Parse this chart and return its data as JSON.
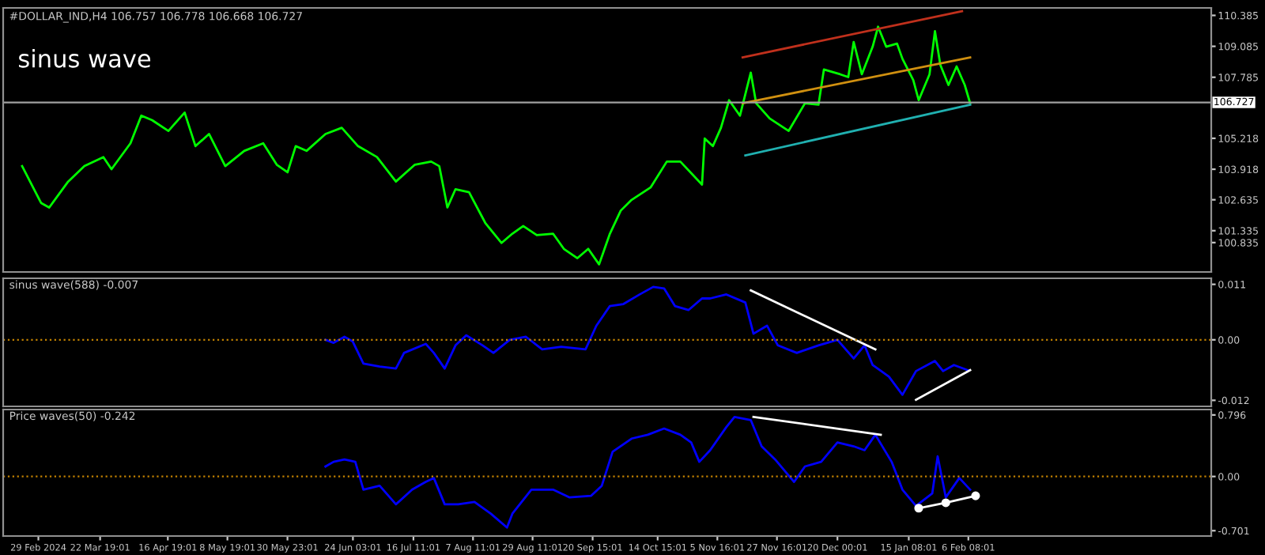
{
  "chart_data": [
    {
      "type": "line",
      "title": "#DOLLAR_IND,H4 106.757 106.778 106.668 106.727",
      "annotations": [
        "sinus wave"
      ],
      "xlim": [
        "2024-02-16",
        "2025-05-07"
      ],
      "ylim": [
        99.6,
        110.7
      ],
      "yticks": [
        110.385,
        109.085,
        107.785,
        105.218,
        103.918,
        102.635,
        101.335,
        100.835
      ],
      "tick_labels": "y",
      "grid": false,
      "legend": false,
      "ref_lines": [
        {
          "axis": "y",
          "value": 106.727,
          "label": "106.727",
          "color": "#a0a0a0",
          "line_style": "solid"
        }
      ],
      "series": [
        {
          "color": "#00ff00",
          "x": [
            "2024-02-23",
            "2024-03-01",
            "2024-03-04",
            "2024-03-11",
            "2024-03-17",
            "2024-03-24",
            "2024-03-27",
            "2024-04-03",
            "2024-04-07",
            "2024-04-11",
            "2024-04-17",
            "2024-04-23",
            "2024-04-27",
            "2024-05-02",
            "2024-05-08",
            "2024-05-15",
            "2024-05-22",
            "2024-05-27",
            "2024-05-31",
            "2024-06-03",
            "2024-06-07",
            "2024-06-14",
            "2024-06-20",
            "2024-06-26",
            "2024-07-03",
            "2024-07-10",
            "2024-07-17",
            "2024-07-23",
            "2024-07-26",
            "2024-07-29",
            "2024-08-01",
            "2024-08-06",
            "2024-08-12",
            "2024-08-18",
            "2024-08-22",
            "2024-08-26",
            "2024-08-31",
            "2024-09-06",
            "2024-09-10",
            "2024-09-15",
            "2024-09-19",
            "2024-09-23",
            "2024-09-27",
            "2024-10-01",
            "2024-10-05",
            "2024-10-12",
            "2024-10-18",
            "2024-10-23",
            "2024-10-31",
            "2024-11-01",
            "2024-11-04",
            "2024-11-07",
            "2024-11-10",
            "2024-11-14",
            "2024-11-18",
            "2024-11-20",
            "2024-11-25",
            "2024-12-02",
            "2024-12-08",
            "2024-12-13",
            "2024-12-15",
            "2024-12-21",
            "2024-12-24",
            "2024-12-26",
            "2024-12-29",
            "2025-01-02",
            "2025-01-04",
            "2025-01-07",
            "2025-01-11",
            "2025-01-13",
            "2025-01-17",
            "2025-01-19",
            "2025-01-23",
            "2025-01-25",
            "2025-01-27",
            "2025-01-30",
            "2025-02-02",
            "2025-02-05",
            "2025-02-07"
          ],
          "values": [
            104.05,
            102.5,
            102.31,
            103.4,
            104.05,
            104.43,
            103.92,
            105.01,
            106.17,
            105.98,
            105.53,
            106.3,
            104.89,
            105.4,
            104.05,
            104.69,
            105.01,
            104.11,
            103.79,
            104.89,
            104.69,
            105.4,
            105.66,
            104.89,
            104.43,
            103.4,
            104.11,
            104.24,
            104.05,
            102.31,
            103.08,
            102.95,
            101.66,
            100.82,
            101.21,
            101.53,
            101.15,
            101.21,
            100.57,
            100.18,
            100.57,
            99.92,
            101.21,
            102.18,
            102.63,
            103.15,
            104.24,
            104.24,
            103.27,
            105.21,
            104.89,
            105.66,
            106.82,
            106.17,
            107.98,
            106.69,
            106.05,
            105.53,
            106.69,
            106.63,
            108.11,
            107.91,
            107.79,
            109.27,
            107.91,
            109.07,
            109.91,
            109.07,
            109.2,
            108.56,
            107.66,
            106.82,
            107.91,
            109.72,
            108.3,
            107.46,
            108.24,
            107.46,
            106.69
          ]
        },
        {
          "color": "#c0301c",
          "x": [
            "2024-11-15",
            "2025-02-04"
          ],
          "values": [
            108.62,
            110.56
          ]
        },
        {
          "color": "#d09010",
          "x": [
            "2024-11-15",
            "2025-02-07"
          ],
          "values": [
            106.69,
            108.62
          ]
        },
        {
          "color": "#20b0b0",
          "x": [
            "2024-11-16",
            "2025-02-07"
          ],
          "values": [
            104.5,
            106.63
          ]
        }
      ]
    },
    {
      "type": "line",
      "title": "sinus wave(588) -0.007",
      "xlim": [
        "2024-02-16",
        "2025-05-07"
      ],
      "ylim": [
        -0.0132,
        0.0122
      ],
      "yticks": [
        0.011,
        {
          "value": 0,
          "label": "0.00"
        },
        -0.012
      ],
      "tick_labels": "y",
      "grid": false,
      "legend": false,
      "ref_lines": [
        {
          "axis": "y",
          "value": 0,
          "label": null,
          "color": "#c08000",
          "line_style": "dotted"
        }
      ],
      "series": [
        {
          "color": "#0000ff",
          "x": [
            "2024-06-14",
            "2024-06-17",
            "2024-06-21",
            "2024-06-24",
            "2024-06-28",
            "2024-07-04",
            "2024-07-10",
            "2024-07-13",
            "2024-07-21",
            "2024-07-24",
            "2024-07-28",
            "2024-08-01",
            "2024-08-05",
            "2024-08-11",
            "2024-08-15",
            "2024-08-21",
            "2024-08-27",
            "2024-09-02",
            "2024-09-09",
            "2024-09-18",
            "2024-09-22",
            "2024-09-27",
            "2024-10-02",
            "2024-10-08",
            "2024-10-13",
            "2024-10-17",
            "2024-10-21",
            "2024-10-26",
            "2024-10-31",
            "2024-11-03",
            "2024-11-09",
            "2024-11-16",
            "2024-11-19",
            "2024-11-24",
            "2024-11-28",
            "2024-12-05",
            "2024-12-13",
            "2024-12-20",
            "2024-12-26",
            "2024-12-30",
            "2025-01-02",
            "2025-01-08",
            "2025-01-13",
            "2025-01-18",
            "2025-01-25",
            "2025-01-28",
            "2025-02-01",
            "2025-02-06"
          ],
          "values": [
            0,
            -0.0006,
            0.0006,
            -0.0003,
            -0.0047,
            -0.0053,
            -0.0057,
            -0.0026,
            -0.0008,
            -0.0026,
            -0.0057,
            -0.0011,
            0.0009,
            -0.0011,
            -0.0026,
            0,
            0.0006,
            -0.0019,
            -0.0014,
            -0.0019,
            0.0028,
            0.0067,
            0.0071,
            0.009,
            0.0105,
            0.0102,
            0.0067,
            0.0059,
            0.0082,
            0.0082,
            0.009,
            0.0074,
            0.0012,
            0.0028,
            -0.0011,
            -0.0026,
            -0.0011,
            0,
            -0.0037,
            -0.0011,
            -0.005,
            -0.0073,
            -0.0109,
            -0.0062,
            -0.0042,
            -0.0062,
            -0.005,
            -0.006
          ]
        },
        {
          "color": "#ffffff",
          "x": [
            "2024-11-18",
            "2025-01-03"
          ],
          "values": [
            0.0098,
            -0.0019
          ]
        },
        {
          "color": "#ffffff",
          "x": [
            "2025-01-18",
            "2025-02-07"
          ],
          "values": [
            -0.0119,
            -0.006
          ]
        }
      ]
    },
    {
      "type": "line",
      "title": "Price waves(50) -0.242",
      "xlim": [
        "2024-02-16",
        "2025-05-07"
      ],
      "ylim": [
        -0.77,
        0.866
      ],
      "yticks": [
        0.796,
        {
          "value": 0,
          "label": "0.00"
        },
        -0.701
      ],
      "grid": false,
      "legend": false,
      "xticks": [
        {
          "value": "2024-02-29",
          "label": "29 Feb 2024"
        },
        {
          "value": "2024-03-22T19:01",
          "label": "22 Mar 19:01"
        },
        {
          "value": "2024-04-16T19:01",
          "label": "16 Apr 19:01"
        },
        {
          "value": "2024-05-08T19:01",
          "label": "8 May 19:01"
        },
        {
          "value": "2024-05-30T23:01",
          "label": "30 May 23:01"
        },
        {
          "value": "2024-06-24T03:01",
          "label": "24 Jun 03:01"
        },
        {
          "value": "2024-07-16T11:01",
          "label": "16 Jul 11:01"
        },
        {
          "value": "2024-08-07T11:01",
          "label": "7 Aug 11:01"
        },
        {
          "value": "2024-08-29T11:01",
          "label": "29 Aug 11:01"
        },
        {
          "value": "2024-09-20T15:01",
          "label": "20 Sep 15:01"
        },
        {
          "value": "2024-10-14T15:01",
          "label": "14 Oct 15:01"
        },
        {
          "value": "2024-11-05T16:01",
          "label": "5 Nov 16:01"
        },
        {
          "value": "2024-11-27T16:01",
          "label": "27 Nov 16:01"
        },
        {
          "value": "2024-12-20T00:01",
          "label": "20 Dec 00:01"
        },
        {
          "value": "2025-01-15T08:01",
          "label": "15 Jan 08:01"
        },
        {
          "value": "2025-02-06T08:01",
          "label": "6 Feb 08:01"
        }
      ],
      "ref_lines": [
        {
          "axis": "y",
          "value": 0,
          "label": null,
          "color": "#c08000",
          "line_style": "dotted"
        }
      ],
      "series": [
        {
          "color": "#0000ff",
          "x": [
            "2024-06-14",
            "2024-06-17",
            "2024-06-21",
            "2024-06-25",
            "2024-06-28",
            "2024-07-04",
            "2024-07-10",
            "2024-07-16",
            "2024-07-21",
            "2024-07-24",
            "2024-07-28",
            "2024-08-02",
            "2024-08-08",
            "2024-08-14",
            "2024-08-20",
            "2024-08-22",
            "2024-08-29",
            "2024-09-06",
            "2024-09-12",
            "2024-09-20",
            "2024-09-24",
            "2024-09-28",
            "2024-10-05",
            "2024-10-11",
            "2024-10-17",
            "2024-10-23",
            "2024-10-27",
            "2024-10-30",
            "2024-11-03",
            "2024-11-09",
            "2024-11-12",
            "2024-11-18",
            "2024-11-22",
            "2024-11-27",
            "2024-12-04",
            "2024-12-08",
            "2024-12-14",
            "2024-12-20",
            "2024-12-26",
            "2024-12-30",
            "2025-01-03",
            "2025-01-09",
            "2025-01-13",
            "2025-01-18",
            "2025-01-24",
            "2025-01-26",
            "2025-01-29",
            "2025-02-03",
            "2025-02-07"
          ],
          "values": [
            0.13,
            0.19,
            0.22,
            0.19,
            -0.17,
            -0.12,
            -0.36,
            -0.17,
            -0.07,
            -0.02,
            -0.36,
            -0.36,
            -0.33,
            -0.48,
            -0.66,
            -0.48,
            -0.17,
            -0.17,
            -0.27,
            -0.25,
            -0.12,
            0.32,
            0.49,
            0.54,
            0.62,
            0.54,
            0.44,
            0.19,
            0.34,
            0.64,
            0.77,
            0.73,
            0.39,
            0.22,
            -0.07,
            0.13,
            0.19,
            0.44,
            0.39,
            0.34,
            0.54,
            0.19,
            -0.17,
            -0.38,
            -0.22,
            0.26,
            -0.27,
            -0.02,
            -0.17
          ]
        },
        {
          "color": "#ffffff",
          "x": [
            "2024-11-19",
            "2025-01-05"
          ],
          "values": [
            0.77,
            0.54
          ]
        },
        {
          "color": "#ffffff",
          "x": [
            "2025-01-19",
            "2025-01-29",
            "2025-02-09"
          ],
          "values": [
            -0.41,
            -0.34,
            -0.25
          ],
          "marker": "circle"
        }
      ]
    }
  ]
}
